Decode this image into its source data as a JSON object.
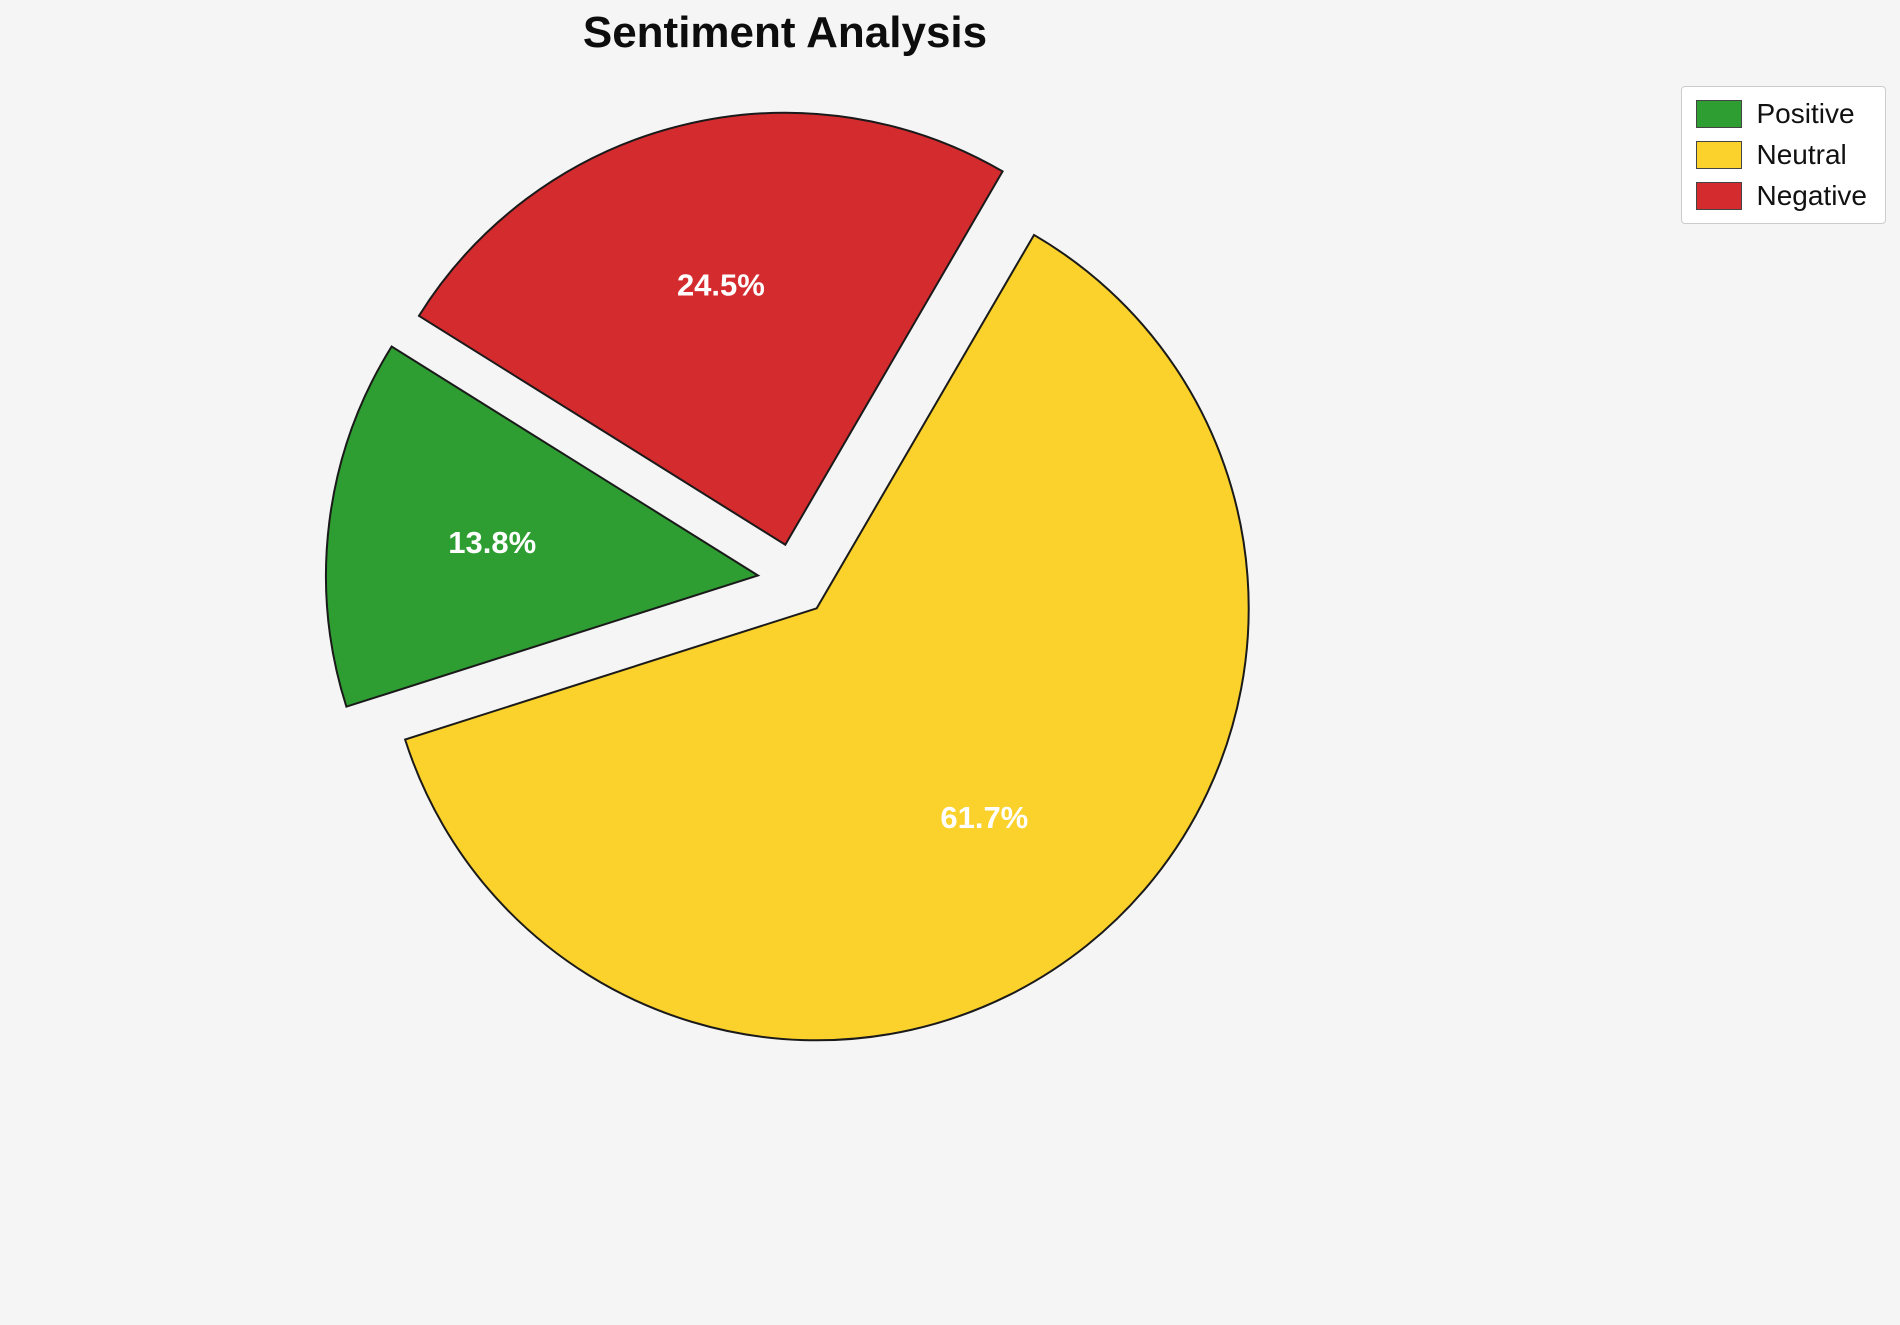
{
  "background_color": "#f5f5f5",
  "chart_data": {
    "type": "pie",
    "title": "Sentiment Analysis",
    "labels": [
      "Positive",
      "Neutral",
      "Negative"
    ],
    "values": [
      13.8,
      61.7,
      24.5
    ],
    "value_labels": [
      "13.8%",
      "61.7%",
      "24.5%"
    ],
    "colors": [
      "#2e9e32",
      "#fbd12b",
      "#d42b2e"
    ],
    "slice_border_color": "#1a1a1a",
    "percent_label_color": "#ffffff",
    "start_angle": 148,
    "direction": "counterclockwise",
    "explode": 0.084,
    "legend_position": "upper right",
    "legend_entries": [
      "Positive",
      "Neutral",
      "Negative"
    ]
  }
}
